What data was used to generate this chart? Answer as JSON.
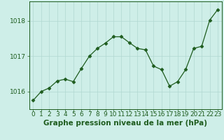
{
  "x": [
    0,
    1,
    2,
    3,
    4,
    5,
    6,
    7,
    8,
    9,
    10,
    11,
    12,
    13,
    14,
    15,
    16,
    17,
    18,
    19,
    20,
    21,
    22,
    23
  ],
  "y": [
    1015.75,
    1016.0,
    1016.1,
    1016.3,
    1016.35,
    1016.28,
    1016.65,
    1017.0,
    1017.22,
    1017.37,
    1017.55,
    1017.55,
    1017.38,
    1017.22,
    1017.18,
    1016.72,
    1016.62,
    1016.15,
    1016.28,
    1016.62,
    1017.22,
    1017.28,
    1018.02,
    1018.32
  ],
  "line_color": "#1e5c1e",
  "marker": "D",
  "marker_size": 2.5,
  "bg_color": "#ceeee8",
  "grid_color": "#b0d8d0",
  "xlabel": "Graphe pression niveau de la mer (hPa)",
  "xlabel_color": "#1e5c1e",
  "tick_color": "#1e5c1e",
  "ylim": [
    1015.5,
    1018.55
  ],
  "yticks": [
    1016,
    1017,
    1018
  ],
  "xticks": [
    0,
    1,
    2,
    3,
    4,
    5,
    6,
    7,
    8,
    9,
    10,
    11,
    12,
    13,
    14,
    15,
    16,
    17,
    18,
    19,
    20,
    21,
    22,
    23
  ],
  "tick_fontsize": 6.5,
  "xlabel_fontsize": 7.5
}
